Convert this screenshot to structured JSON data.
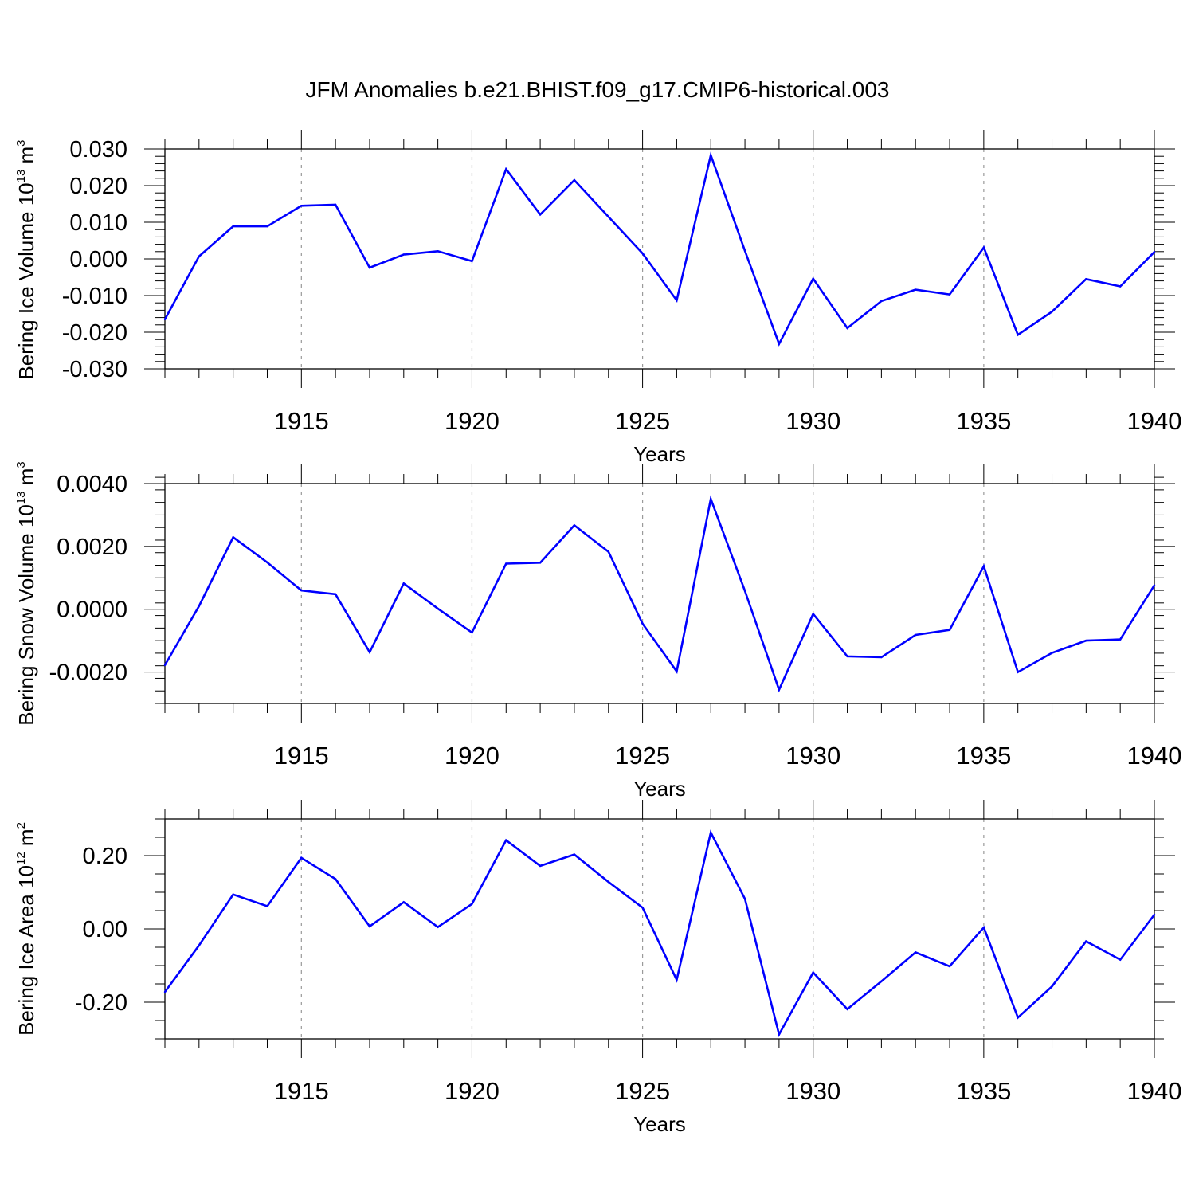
{
  "title": "JFM Anomalies b.e21.BHIST.f09_g17.CMIP6-historical.003",
  "line_color": "#0000ff",
  "grid_color": "#9a9a9a",
  "chart_data": [
    {
      "type": "line",
      "series_name": "Bering Ice Volume",
      "ylabel_main": "Bering Ice Volume 10",
      "ylabel_exp": "13",
      "ylabel_unit": " m",
      "ylabel_unit_exp": "3",
      "xlabel": "Years",
      "xlim": [
        1911,
        1940
      ],
      "ylim": [
        -0.03,
        0.03
      ],
      "x_ticks": [
        1915,
        1920,
        1925,
        1930,
        1935,
        1940
      ],
      "y_ticks": [
        -0.03,
        -0.02,
        -0.01,
        0.0,
        0.01,
        0.02,
        0.03
      ],
      "y_tick_labels": [
        "-0.030",
        "-0.020",
        "-0.010",
        "0.000",
        "0.010",
        "0.020",
        "0.030"
      ],
      "y_minor_step": 0.002,
      "grid": "vertical dashed at 5-year ticks",
      "x": [
        1911,
        1912,
        1913,
        1914,
        1915,
        1916,
        1917,
        1918,
        1919,
        1920,
        1921,
        1922,
        1923,
        1924,
        1925,
        1926,
        1927,
        1928,
        1929,
        1930,
        1931,
        1932,
        1933,
        1934,
        1935,
        1936,
        1937,
        1938,
        1939,
        1940
      ],
      "values": [
        -0.0165,
        0.0007,
        0.0089,
        0.0089,
        0.0145,
        0.0148,
        -0.0024,
        0.0012,
        0.0021,
        -0.0006,
        0.0245,
        0.0121,
        0.0215,
        0.0115,
        0.0015,
        -0.0113,
        0.0283,
        0.0022,
        -0.0232,
        -0.0054,
        -0.0189,
        -0.0115,
        -0.0084,
        -0.0097,
        0.0031,
        -0.0207,
        -0.0144,
        -0.0055,
        -0.0075,
        0.0019
      ]
    },
    {
      "type": "line",
      "series_name": "Bering Snow Volume",
      "ylabel_main": "Bering Snow Volume 10",
      "ylabel_exp": "13",
      "ylabel_unit": " m",
      "ylabel_unit_exp": "3",
      "xlabel": "Years",
      "xlim": [
        1911,
        1940
      ],
      "ylim": [
        -0.003,
        0.004
      ],
      "x_ticks": [
        1915,
        1920,
        1925,
        1930,
        1935,
        1940
      ],
      "y_ticks": [
        -0.002,
        0.0,
        0.002,
        0.004
      ],
      "y_tick_labels": [
        "-0.0020",
        "0.0000",
        "0.0020",
        "0.0040"
      ],
      "y_minor_step": 0.0004,
      "grid": "vertical dashed at 5-year ticks",
      "x": [
        1911,
        1912,
        1913,
        1914,
        1915,
        1916,
        1917,
        1918,
        1919,
        1920,
        1921,
        1922,
        1923,
        1924,
        1925,
        1926,
        1927,
        1928,
        1929,
        1930,
        1931,
        1932,
        1933,
        1934,
        1935,
        1936,
        1937,
        1938,
        1939,
        1940
      ],
      "values": [
        -0.00178,
        0.0001,
        0.00229,
        0.00149,
        0.0006,
        0.00048,
        -0.00137,
        0.00082,
        2e-05,
        -0.00074,
        0.00145,
        0.00148,
        0.00267,
        0.00183,
        -0.00046,
        -0.00198,
        0.00351,
        0.00058,
        -0.00256,
        -0.00015,
        -0.0015,
        -0.00153,
        -0.00082,
        -0.00066,
        0.00137,
        -0.002,
        -0.00139,
        -0.001,
        -0.00096,
        0.00076
      ]
    },
    {
      "type": "line",
      "series_name": "Bering Ice Area",
      "ylabel_main": "Bering Ice Area 10",
      "ylabel_exp": "12",
      "ylabel_unit": " m",
      "ylabel_unit_exp": "2",
      "xlabel": "Years",
      "xlim": [
        1911,
        1940
      ],
      "ylim": [
        -0.3,
        0.3
      ],
      "x_ticks": [
        1915,
        1920,
        1925,
        1930,
        1935,
        1940
      ],
      "y_ticks": [
        -0.2,
        0.0,
        0.2
      ],
      "y_tick_labels": [
        "-0.20",
        "0.00",
        "0.20"
      ],
      "y_minor_step": 0.05,
      "grid": "vertical dashed at 5-year ticks",
      "x": [
        1911,
        1912,
        1913,
        1914,
        1915,
        1916,
        1917,
        1918,
        1919,
        1920,
        1921,
        1922,
        1923,
        1924,
        1925,
        1926,
        1927,
        1928,
        1929,
        1930,
        1931,
        1932,
        1933,
        1934,
        1935,
        1936,
        1937,
        1938,
        1939,
        1940
      ],
      "values": [
        -0.172,
        -0.045,
        0.094,
        0.062,
        0.194,
        0.136,
        0.007,
        0.073,
        0.005,
        0.068,
        0.242,
        0.172,
        0.203,
        0.128,
        0.058,
        -0.139,
        0.263,
        0.082,
        -0.288,
        -0.119,
        -0.219,
        -0.143,
        -0.064,
        -0.102,
        0.004,
        -0.242,
        -0.157,
        -0.034,
        -0.084,
        0.039
      ]
    }
  ]
}
